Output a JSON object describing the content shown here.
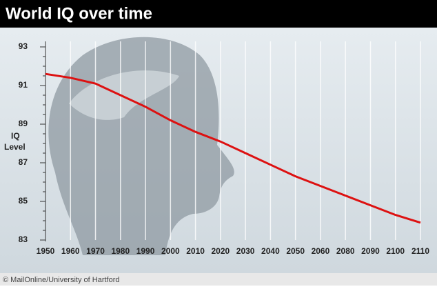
{
  "chart_data": {
    "type": "line",
    "title": "World IQ over time",
    "y_label": [
      "IQ",
      "Level"
    ],
    "source": "© MailOnline/University of Hartford",
    "categories": [
      "1950",
      "1960",
      "1970",
      "1980",
      "1990",
      "2000",
      "2010",
      "2020",
      "2030",
      "2040",
      "2050",
      "2060",
      "2080",
      "2090",
      "2100",
      "2110"
    ],
    "series": [
      {
        "name": "IQ",
        "color": "#dd1111",
        "values": [
          91.6,
          91.4,
          91.1,
          90.5,
          89.9,
          89.2,
          88.6,
          88.1,
          87.5,
          86.9,
          86.3,
          85.8,
          85.3,
          84.8,
          84.3,
          83.9
        ]
      }
    ],
    "ylim": [
      83,
      93
    ],
    "yticks": [
      83,
      85,
      87,
      89,
      91,
      93
    ]
  }
}
